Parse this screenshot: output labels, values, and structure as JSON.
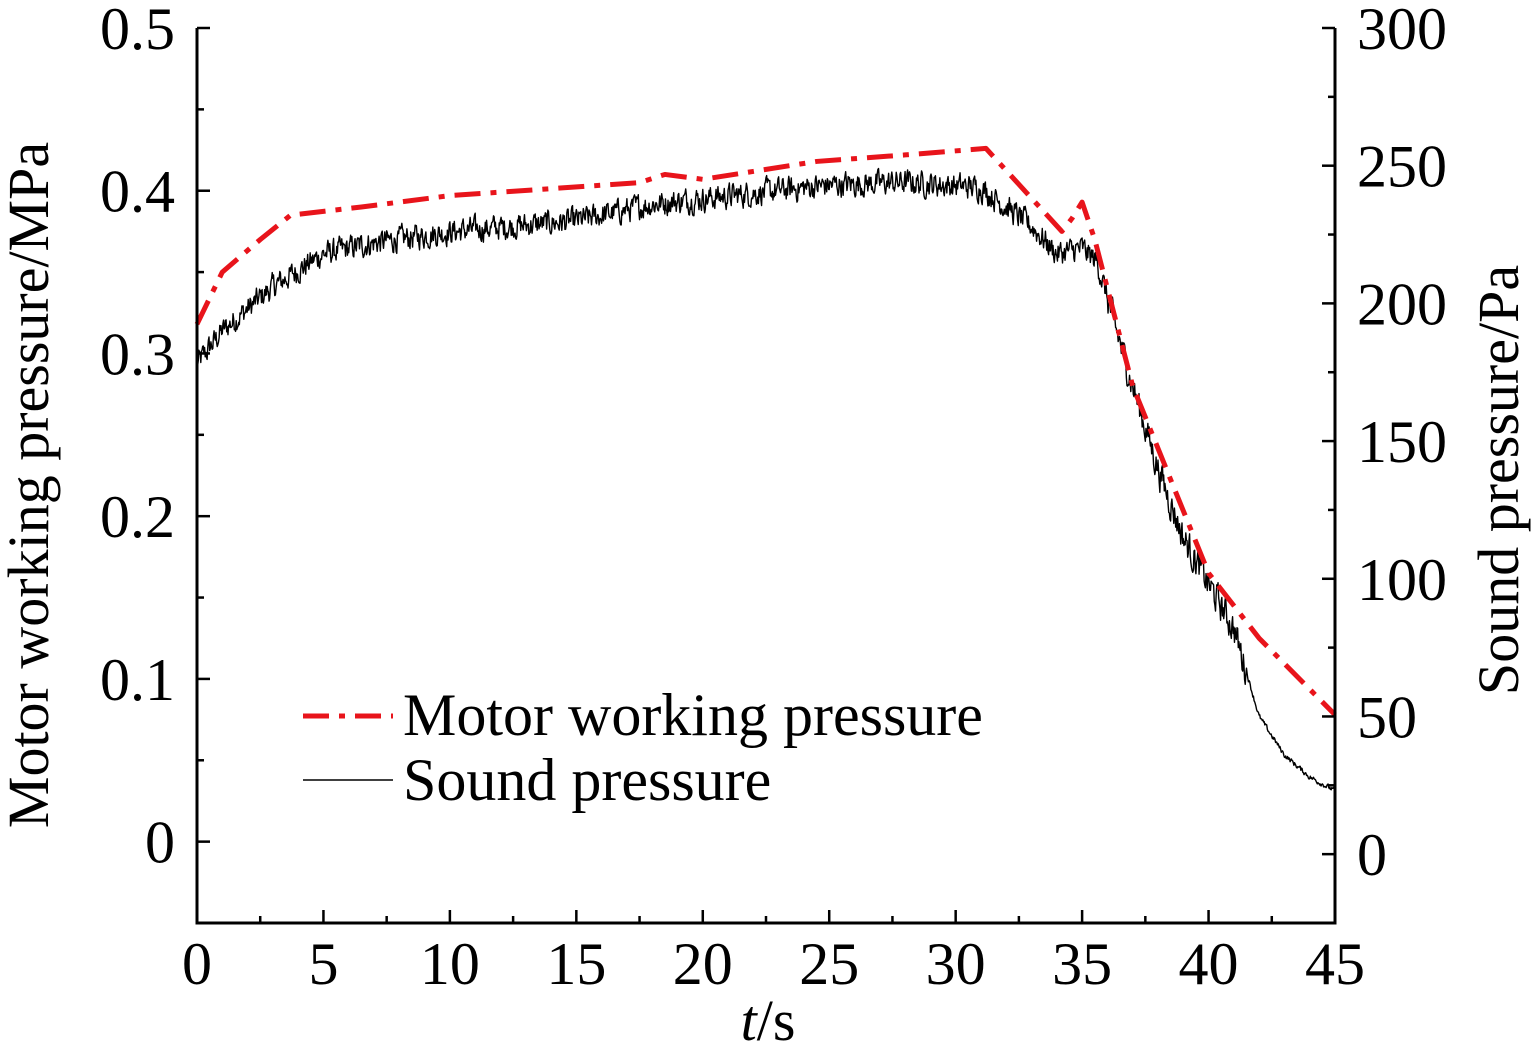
{
  "chart_data": {
    "type": "line",
    "x_axis": {
      "label_italic": "t",
      "label_rest": "/s",
      "range": [
        0,
        45
      ],
      "major_ticks": [
        0,
        5,
        10,
        15,
        20,
        25,
        30,
        35,
        40,
        45
      ],
      "minor_step": 2.5
    },
    "y_axis_left": {
      "label": "Motor working pressure/MPa",
      "range": [
        -0.05,
        0.5
      ],
      "major_ticks": [
        0,
        0.1,
        0.2,
        0.3,
        0.4,
        0.5
      ],
      "tick_labels": [
        "0",
        "0.1",
        "0.2",
        "0.3",
        "0.4",
        "0.5"
      ],
      "minor_step": 0.05
    },
    "y_axis_right": {
      "label": "Sound pressure/Pa",
      "range": [
        -25,
        300
      ],
      "major_ticks": [
        0,
        50,
        100,
        150,
        200,
        250,
        300
      ],
      "tick_labels": [
        "0",
        "50",
        "100",
        "150",
        "200",
        "250",
        "300"
      ],
      "minor_step": 25
    },
    "legend": {
      "placement": "lower-left",
      "entries": [
        "Motor working pressure",
        "Sound pressure"
      ]
    },
    "series": [
      {
        "name": "Motor working pressure",
        "axis": "left",
        "color": "#e8141b",
        "style": "dash-dot",
        "x": [
          0,
          1,
          2.5,
          3.7,
          6.5,
          10,
          17.5,
          18.5,
          20,
          24.5,
          28,
          31.2,
          34.2,
          34.6,
          35,
          35.5,
          37,
          40,
          42,
          45
        ],
        "y": [
          0.318,
          0.35,
          0.37,
          0.385,
          0.39,
          0.397,
          0.405,
          0.41,
          0.407,
          0.418,
          0.422,
          0.426,
          0.375,
          0.383,
          0.393,
          0.37,
          0.28,
          0.165,
          0.125,
          0.078
        ]
      },
      {
        "name": "Sound pressure",
        "axis": "right",
        "color": "#000000",
        "style": "solid",
        "x": [
          0,
          1,
          2,
          3,
          4,
          5,
          7,
          10,
          15,
          18,
          20,
          25,
          28,
          31,
          33,
          34,
          35,
          35.6,
          36.2,
          37,
          38,
          39,
          40,
          41,
          42,
          43,
          44,
          45
        ],
        "y": [
          178,
          190,
          198,
          206,
          212,
          218,
          222,
          226,
          230,
          236,
          238,
          243,
          244,
          242,
          228,
          218,
          220,
          215,
          195,
          170,
          140,
          115,
          98,
          82,
          50,
          36,
          28,
          23
        ],
        "noise_amplitude": 7
      }
    ]
  }
}
